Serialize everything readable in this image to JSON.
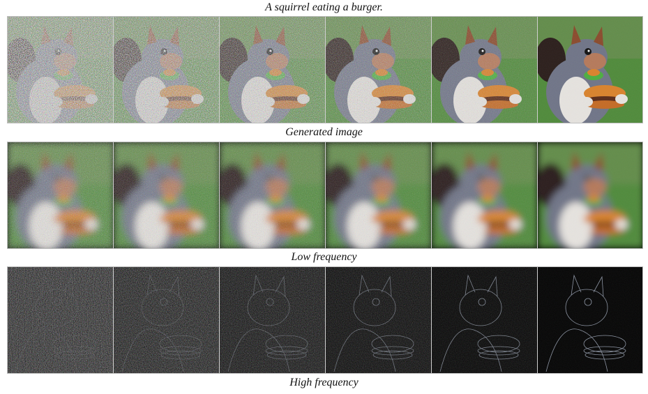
{
  "figure": {
    "title": "A squirrel eating a burger.",
    "rows": [
      {
        "caption": "Generated image",
        "kind": "generated",
        "tiles": [
          {
            "noise": 0.95
          },
          {
            "noise": 0.78
          },
          {
            "noise": 0.6
          },
          {
            "noise": 0.42
          },
          {
            "noise": 0.22
          },
          {
            "noise": 0.05
          }
        ]
      },
      {
        "caption": "Low frequency",
        "kind": "low",
        "tiles": [
          {
            "noise": 0.35
          },
          {
            "noise": 0.3
          },
          {
            "noise": 0.25
          },
          {
            "noise": 0.2
          },
          {
            "noise": 0.12
          },
          {
            "noise": 0.05
          }
        ]
      },
      {
        "caption": "High frequency",
        "kind": "high",
        "tiles": [
          {
            "noise": 0.95
          },
          {
            "noise": 0.78
          },
          {
            "noise": 0.6
          },
          {
            "noise": 0.42
          },
          {
            "noise": 0.25
          },
          {
            "noise": 0.1
          }
        ]
      }
    ]
  },
  "colors": {
    "fur_gray": "#6f7487",
    "fur_dark": "#3d3438",
    "ear_brown": "#8a4a2c",
    "belly_white": "#e6e3df",
    "bun_orange": "#d9822b",
    "patty_brown": "#5a2a17",
    "lettuce_green": "#4cae3f",
    "grass_green": "#4f8a3a",
    "tail_dark": "#2a1d1a"
  }
}
